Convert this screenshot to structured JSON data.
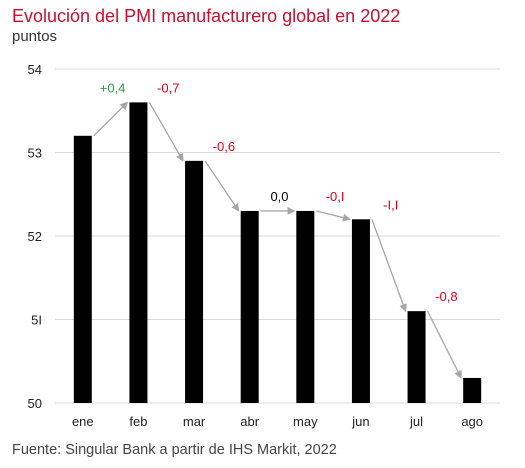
{
  "title": "Evolución del PMI manufacturero global en 2022",
  "subtitle": "puntos",
  "source": "Fuente: Singular Bank a partir de IHS Markit, 2022",
  "colors": {
    "title": "#c8102e",
    "bar": "#000000",
    "grid": "#d9d9d9",
    "arrow": "#a6a6a6",
    "positive": "#2e9e3e",
    "negative": "#e3001b",
    "neutral": "#000000"
  },
  "chart_data": {
    "type": "bar",
    "title": "Evolución del PMI manufacturero global en 2022",
    "subtitle": "puntos",
    "xlabel": "",
    "ylabel": "",
    "categories": [
      "ene",
      "feb",
      "mar",
      "abr",
      "may",
      "jun",
      "jul",
      "ago"
    ],
    "values": [
      53.2,
      53.6,
      52.9,
      52.3,
      52.3,
      52.2,
      51.1,
      50.3
    ],
    "ylim": [
      50,
      54
    ],
    "yticks": [
      50,
      51,
      52,
      53,
      54
    ],
    "ytick_labels": [
      "50",
      "5I",
      "52",
      "53",
      "54"
    ],
    "grid": true,
    "changes": [
      {
        "from": "ene",
        "to": "feb",
        "label": "+0,4",
        "sign": "positive"
      },
      {
        "from": "feb",
        "to": "mar",
        "label": "-0,7",
        "sign": "negative"
      },
      {
        "from": "mar",
        "to": "abr",
        "label": "-0,6",
        "sign": "negative"
      },
      {
        "from": "abr",
        "to": "may",
        "label": "0,0",
        "sign": "neutral"
      },
      {
        "from": "may",
        "to": "jun",
        "label": "-0,I",
        "sign": "negative"
      },
      {
        "from": "jun",
        "to": "jul",
        "label": "-I,I",
        "sign": "negative"
      },
      {
        "from": "jul",
        "to": "ago",
        "label": "-0,8",
        "sign": "negative"
      }
    ]
  }
}
